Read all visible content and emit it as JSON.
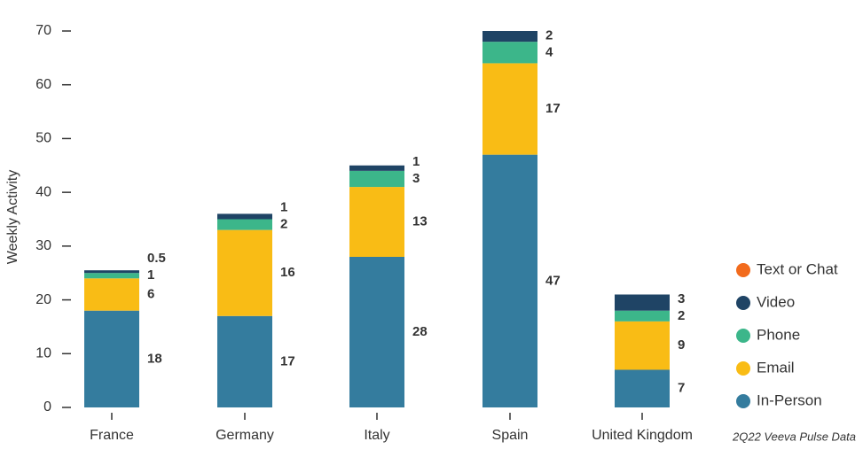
{
  "chart_data": {
    "type": "stacked-bar",
    "y_label": "Weekly Activity",
    "source": "2Q22 Veeva Pulse Data",
    "categories": [
      "France",
      "Germany",
      "Italy",
      "Spain",
      "United Kingdom"
    ],
    "series": [
      {
        "name": "In-Person",
        "color": "#347c9e",
        "values": [
          18,
          17,
          28,
          47,
          7
        ]
      },
      {
        "name": "Email",
        "color": "#f9bc15",
        "values": [
          6,
          16,
          13,
          17,
          9
        ]
      },
      {
        "name": "Phone",
        "color": "#3cb68a",
        "values": [
          1,
          2,
          3,
          4,
          2
        ]
      },
      {
        "name": "Video",
        "color": "#1f4465",
        "values": [
          0.5,
          1,
          1,
          2,
          3
        ]
      },
      {
        "name": "Text or Chat",
        "color": "#f26b1d",
        "values": [
          0,
          0,
          0,
          0,
          0
        ]
      }
    ],
    "ylim": [
      0,
      70
    ],
    "yticks": [
      0,
      10,
      20,
      30,
      40,
      50,
      60,
      70
    ]
  }
}
